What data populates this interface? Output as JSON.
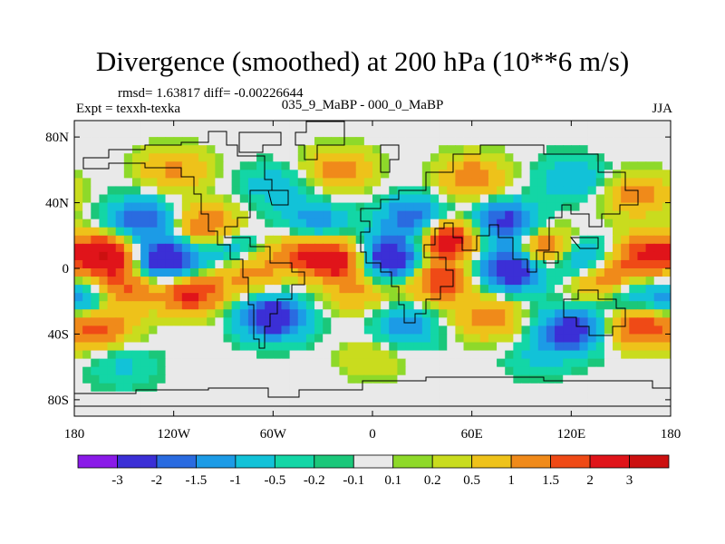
{
  "chart_data": {
    "type": "heatmap",
    "title": "Divergence (smoothed) at 200 hPa (10**6 m/s)",
    "stats": {
      "rmsd_label": "rmsd= 1.63817  diff= -0.00226644"
    },
    "left_label": "Expt = texxh-texka",
    "center_label": "035_9_MaBP - 000_0_MaBP",
    "right_label": "JJA",
    "x_axis": {
      "range": [
        -180,
        180
      ],
      "ticks": [
        -180,
        -120,
        -60,
        0,
        60,
        120,
        180
      ],
      "tick_labels": [
        "180",
        "120W",
        "60W",
        "0",
        "60E",
        "120E",
        "180"
      ]
    },
    "y_axis": {
      "range": [
        -90,
        90
      ],
      "ticks": [
        80,
        40,
        0,
        -40,
        -80
      ],
      "tick_labels": [
        "80N",
        "40N",
        "0",
        "40S",
        "80S"
      ]
    },
    "colorbar": {
      "levels": [
        "-3",
        "-2",
        "-1.5",
        "-1",
        "-0.5",
        "-0.2",
        "-0.1",
        "0.1",
        "0.2",
        "0.5",
        "1",
        "1.5",
        "2",
        "3"
      ],
      "colors": [
        "#8a1ae8",
        "#3b2fd6",
        "#2a6be0",
        "#1c9be6",
        "#12c2d8",
        "#13d6a6",
        "#1bc77a",
        "#e9e9e9",
        "#8ed92a",
        "#c9dc1e",
        "#eec21a",
        "#f08a1a",
        "#ef4a16",
        "#e0141a",
        "#cc1010"
      ]
    },
    "field_blobs": [
      {
        "lon": -160,
        "lat": 8,
        "value": 3.0
      },
      {
        "lon": -125,
        "lat": 5,
        "value": -3.2
      },
      {
        "lon": -140,
        "lat": 30,
        "value": -2.0
      },
      {
        "lon": -150,
        "lat": -12,
        "value": 1.6
      },
      {
        "lon": -110,
        "lat": -15,
        "value": 2.2
      },
      {
        "lon": -165,
        "lat": -35,
        "value": 1.8
      },
      {
        "lon": -175,
        "lat": -20,
        "value": -1.6
      },
      {
        "lon": -100,
        "lat": 25,
        "value": 1.8
      },
      {
        "lon": -85,
        "lat": 12,
        "value": -1.2
      },
      {
        "lon": -75,
        "lat": -2,
        "value": 1.3
      },
      {
        "lon": -60,
        "lat": -30,
        "value": -3.0
      },
      {
        "lon": -35,
        "lat": 28,
        "value": -1.4
      },
      {
        "lon": -20,
        "lat": 5,
        "value": 2.5
      },
      {
        "lon": -45,
        "lat": 10,
        "value": 1.5
      },
      {
        "lon": -10,
        "lat": -15,
        "value": 1.0
      },
      {
        "lon": 10,
        "lat": 6,
        "value": -3.2
      },
      {
        "lon": 25,
        "lat": 30,
        "value": -2.2
      },
      {
        "lon": 45,
        "lat": 18,
        "value": 2.8
      },
      {
        "lon": 40,
        "lat": -8,
        "value": 2.0
      },
      {
        "lon": 85,
        "lat": 0,
        "value": -3.3
      },
      {
        "lon": 80,
        "lat": 28,
        "value": -2.4
      },
      {
        "lon": 105,
        "lat": 10,
        "value": 2.6
      },
      {
        "lon": 125,
        "lat": 5,
        "value": -2.2
      },
      {
        "lon": 140,
        "lat": -8,
        "value": 2.5
      },
      {
        "lon": 165,
        "lat": 8,
        "value": 2.2
      },
      {
        "lon": 150,
        "lat": -15,
        "value": -1.6
      },
      {
        "lon": 120,
        "lat": -38,
        "value": -2.6
      },
      {
        "lon": 160,
        "lat": -35,
        "value": 2.0
      },
      {
        "lon": 70,
        "lat": -30,
        "value": 1.4
      },
      {
        "lon": 20,
        "lat": -35,
        "value": -1.3
      },
      {
        "lon": -120,
        "lat": 60,
        "value": 1.2
      },
      {
        "lon": -20,
        "lat": 60,
        "value": 1.3
      },
      {
        "lon": 60,
        "lat": 55,
        "value": 1.5
      },
      {
        "lon": 120,
        "lat": 55,
        "value": -1.0
      },
      {
        "lon": 160,
        "lat": 45,
        "value": 1.3
      },
      {
        "lon": -60,
        "lat": 50,
        "value": -0.8
      },
      {
        "lon": 0,
        "lat": -55,
        "value": 0.5
      },
      {
        "lon": -150,
        "lat": -60,
        "value": -0.6
      },
      {
        "lon": 100,
        "lat": -55,
        "value": -0.5
      }
    ]
  }
}
